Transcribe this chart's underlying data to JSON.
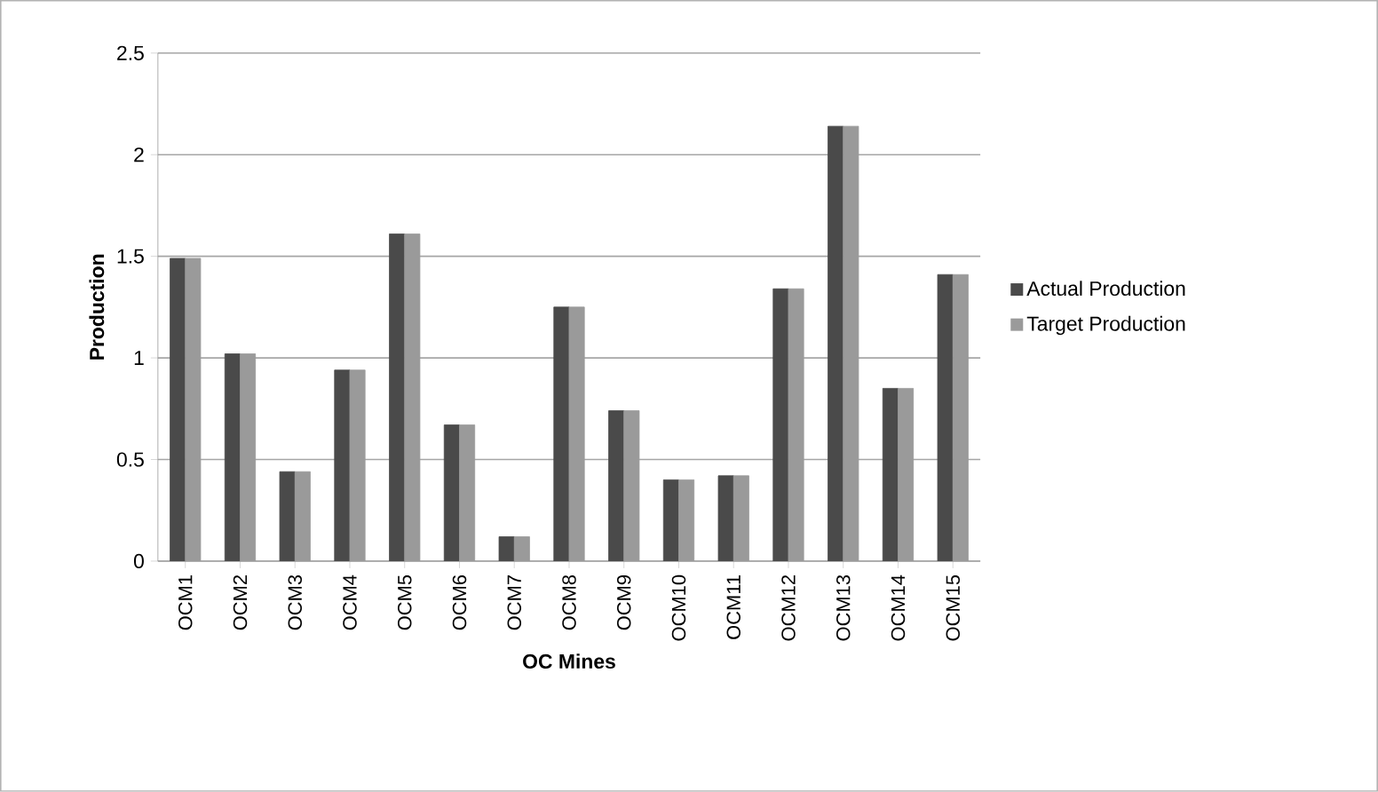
{
  "chart_data": {
    "type": "bar",
    "xlabel": "OC Mines",
    "ylabel": "Production",
    "categories": [
      "OCM1",
      "OCM2",
      "OCM3",
      "OCM4",
      "OCM5",
      "OCM6",
      "OCM7",
      "OCM8",
      "OCM9",
      "OCM10",
      "OCM11",
      "OCM12",
      "OCM13",
      "OCM14",
      "OCM15"
    ],
    "series": [
      {
        "name": "Actual Production",
        "color": "#4a4a4a",
        "values": [
          1.49,
          1.02,
          0.44,
          0.94,
          1.61,
          0.67,
          0.12,
          1.25,
          0.74,
          0.4,
          0.42,
          1.34,
          2.14,
          0.85,
          1.41
        ]
      },
      {
        "name": "Target Production",
        "color": "#9a9a9a",
        "values": [
          1.49,
          1.02,
          0.44,
          0.94,
          1.61,
          0.67,
          0.12,
          1.25,
          0.74,
          0.4,
          0.42,
          1.34,
          2.14,
          0.85,
          1.41
        ]
      }
    ],
    "ylim": [
      0,
      2.5
    ],
    "yticks": [
      0,
      0.5,
      1,
      1.5,
      2,
      2.5
    ],
    "grid": "y",
    "legend": "right"
  }
}
